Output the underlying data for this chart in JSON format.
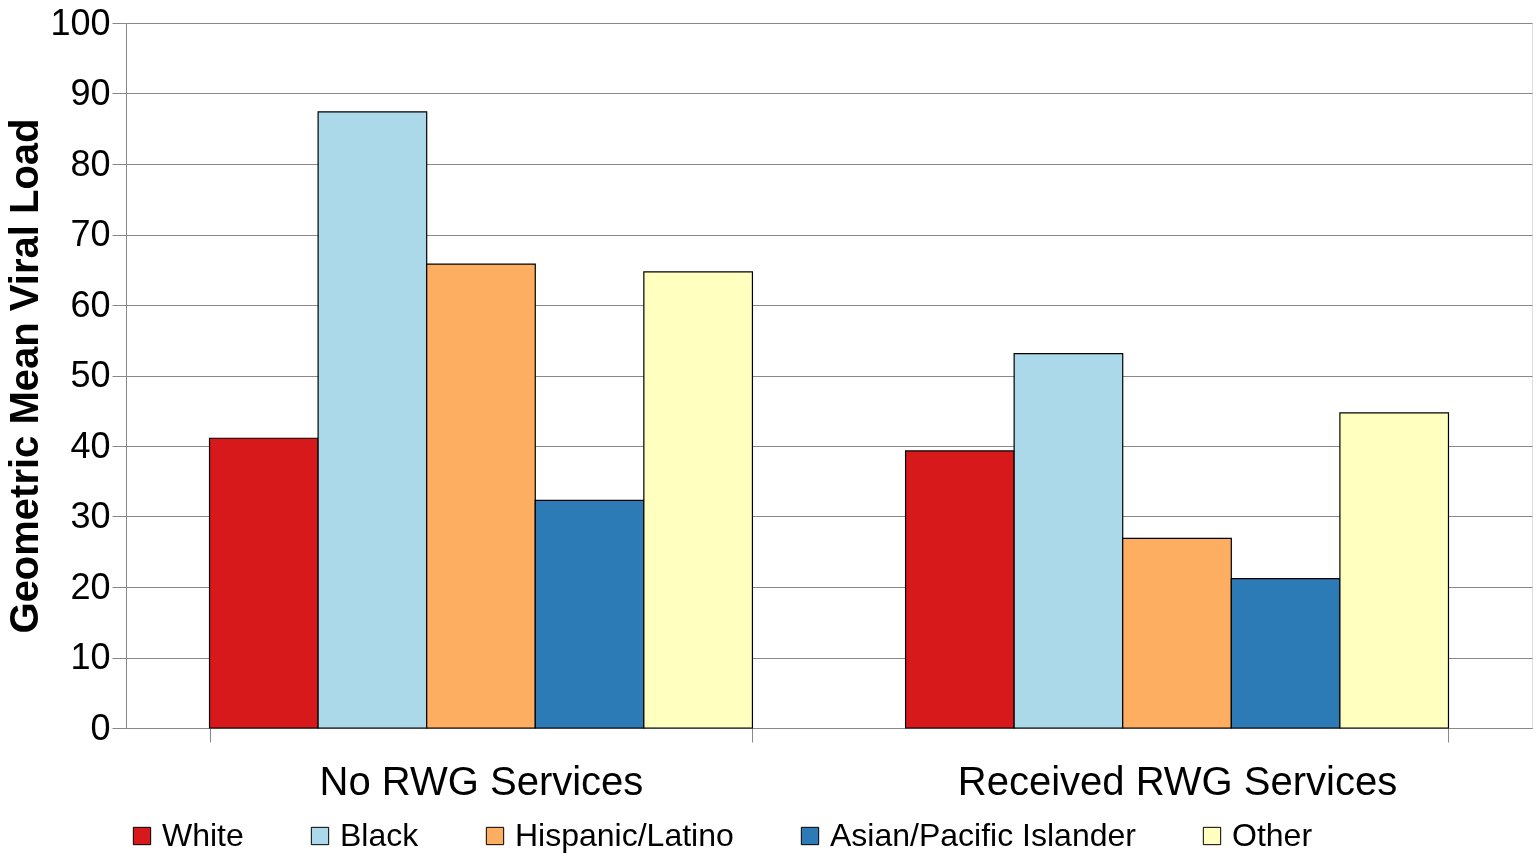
{
  "chart_data": {
    "type": "bar",
    "ylabel": "Geometric Mean Viral Load",
    "categories": [
      "No RWG Services",
      "Received RWG Services"
    ],
    "series": [
      {
        "name": "White",
        "color": "#d7191c",
        "values": [
          41.1,
          39.3
        ]
      },
      {
        "name": "Black",
        "color": "#abd9e9",
        "values": [
          87.4,
          53.1
        ]
      },
      {
        "name": "Hispanic/Latino",
        "color": "#fdae61",
        "values": [
          65.8,
          26.9
        ]
      },
      {
        "name": "Asian/Pacific Islander",
        "color": "#2c7bb6",
        "values": [
          32.3,
          21.2
        ]
      },
      {
        "name": "Other",
        "color": "#ffffbf",
        "values": [
          64.7,
          44.7
        ]
      }
    ],
    "ylim": [
      0,
      100
    ],
    "yticks": [
      0,
      10,
      20,
      30,
      40,
      50,
      60,
      70,
      80,
      90,
      100
    ],
    "grid": "y",
    "legend": "bottom"
  }
}
